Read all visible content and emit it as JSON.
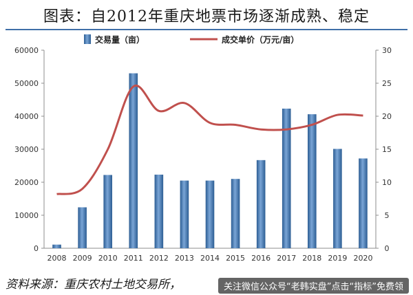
{
  "title": "图表：自2012年重庆地票市场逐渐成熟、稳定",
  "source": "资料来源：重庆农村土地交易所，",
  "watermark": "关注微信公众号“老韩实盘”点击“指标”免费领",
  "chart_data": {
    "type": "bar+line",
    "categories": [
      "2008",
      "2009",
      "2010",
      "2011",
      "2012",
      "2013",
      "2014",
      "2015",
      "2016",
      "2017",
      "2018",
      "2019",
      "2020"
    ],
    "series": [
      {
        "name": "交易量（亩）",
        "type": "bar",
        "axis": "left",
        "values": [
          1100,
          12400,
          22200,
          53000,
          22300,
          20500,
          20500,
          21000,
          26700,
          42300,
          40600,
          30100,
          27200
        ],
        "color": "#4f81bd"
      },
      {
        "name": "成交单价（万元/亩）",
        "type": "line",
        "axis": "right",
        "values": [
          8.2,
          9.0,
          15.0,
          24.5,
          20.8,
          22.0,
          19.0,
          18.7,
          18.0,
          18.0,
          18.7,
          20.2,
          20.1
        ],
        "color": "#c0504d"
      }
    ],
    "y_left": {
      "min": 0,
      "max": 60000,
      "ticks": [
        0,
        10000,
        20000,
        30000,
        40000,
        50000,
        60000
      ]
    },
    "y_right": {
      "min": 0,
      "max": 30,
      "ticks": [
        0,
        5,
        10,
        15,
        20,
        25,
        30
      ]
    },
    "legend": "top",
    "grid": false
  }
}
